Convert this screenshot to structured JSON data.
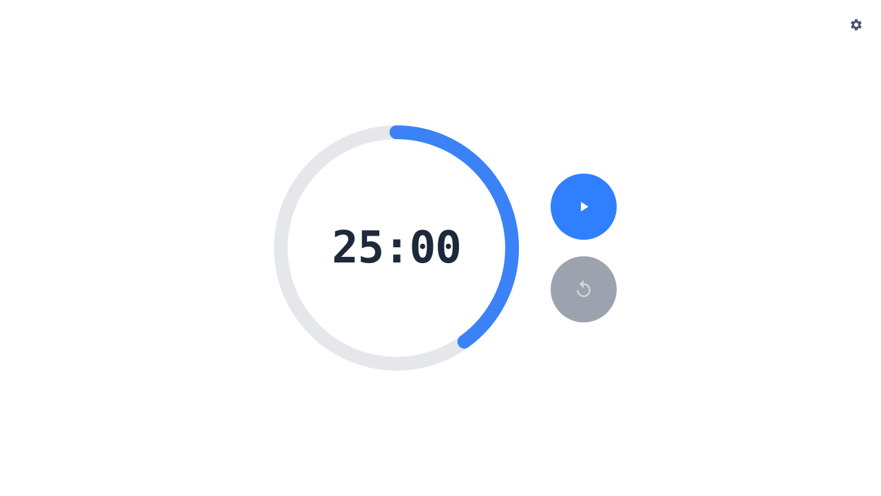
{
  "timer": {
    "display": "25:00",
    "progress": 0.4
  },
  "controls": {
    "play_icon": "play-icon",
    "reset_icon": "reset-icon",
    "settings_icon": "gear-icon"
  },
  "colors": {
    "accent": "#3b82f6",
    "play_button": "#2f7fff",
    "reset_button": "#9ca3af",
    "reset_icon": "#d1d5db",
    "track": "#e5e7eb",
    "text": "#1e293b",
    "settings_icon": "#475569"
  }
}
